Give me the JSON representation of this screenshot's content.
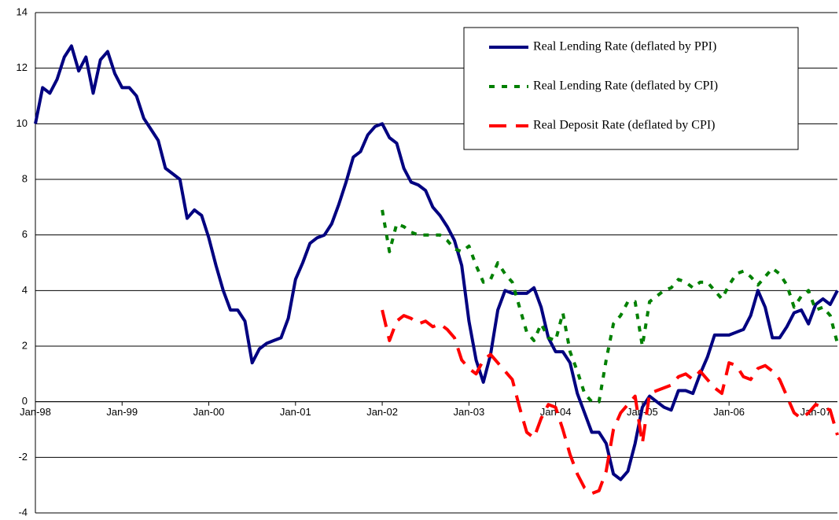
{
  "chart_data": {
    "type": "line",
    "categories": [
      "Jan-98",
      null,
      null,
      null,
      null,
      null,
      null,
      null,
      null,
      null,
      null,
      null,
      "Jan-99",
      null,
      null,
      null,
      null,
      null,
      null,
      null,
      null,
      null,
      null,
      null,
      "Jan-00",
      null,
      null,
      null,
      null,
      null,
      null,
      null,
      null,
      null,
      null,
      null,
      "Jan-01",
      null,
      null,
      null,
      null,
      null,
      null,
      null,
      null,
      null,
      null,
      null,
      "Jan-02",
      null,
      null,
      null,
      null,
      null,
      null,
      null,
      null,
      null,
      null,
      null,
      "Jan-03",
      null,
      null,
      null,
      null,
      null,
      null,
      null,
      null,
      null,
      null,
      null,
      "Jan-04",
      null,
      null,
      null,
      null,
      null,
      null,
      null,
      null,
      null,
      null,
      null,
      "Jan-05",
      null,
      null,
      null,
      null,
      null,
      null,
      null,
      null,
      null,
      null,
      null,
      "Jan-06",
      null,
      null,
      null,
      null,
      null,
      null,
      null,
      null,
      null,
      null,
      null,
      "Jan-07",
      null,
      null,
      null
    ],
    "series": [
      {
        "name": "Real Lending Rate (deflated by PPI)",
        "color": "#000080",
        "dash": "solid",
        "values": [
          10.0,
          11.3,
          11.1,
          11.6,
          12.4,
          12.8,
          11.9,
          12.4,
          11.1,
          12.3,
          12.6,
          11.8,
          11.3,
          11.3,
          11.0,
          10.2,
          9.8,
          9.4,
          8.4,
          8.2,
          8.0,
          6.6,
          6.9,
          6.7,
          5.9,
          4.9,
          4.0,
          3.3,
          3.3,
          2.9,
          1.4,
          1.9,
          2.1,
          2.2,
          2.3,
          3.0,
          4.4,
          5.0,
          5.7,
          5.9,
          6.0,
          6.4,
          7.1,
          7.9,
          8.8,
          9.0,
          9.6,
          9.9,
          10.0,
          9.5,
          9.3,
          8.4,
          7.9,
          7.8,
          7.6,
          7.0,
          6.7,
          6.3,
          5.8,
          4.9,
          2.9,
          1.5,
          0.7,
          1.7,
          3.3,
          4.0,
          3.9,
          3.9,
          3.9,
          4.1,
          3.4,
          2.3,
          1.8,
          1.8,
          1.4,
          0.3,
          -0.4,
          -1.1,
          -1.1,
          -1.5,
          -2.6,
          -2.8,
          -2.5,
          -1.5,
          -0.2,
          0.2,
          0.0,
          -0.2,
          -0.3,
          0.4,
          0.4,
          0.3,
          1.0,
          1.6,
          2.4,
          2.4,
          2.4,
          2.5,
          2.6,
          3.1,
          4.0,
          3.4,
          2.3,
          2.3,
          2.7,
          3.2,
          3.3,
          2.8,
          3.5,
          3.7,
          3.5,
          4.0
        ]
      },
      {
        "name": "Real Lending Rate (deflated by CPI)",
        "color": "#008000",
        "dash": "dot",
        "values": [
          null,
          null,
          null,
          null,
          null,
          null,
          null,
          null,
          null,
          null,
          null,
          null,
          null,
          null,
          null,
          null,
          null,
          null,
          null,
          null,
          null,
          null,
          null,
          null,
          null,
          null,
          null,
          null,
          null,
          null,
          null,
          null,
          null,
          null,
          null,
          null,
          null,
          null,
          null,
          null,
          null,
          null,
          null,
          null,
          null,
          null,
          null,
          null,
          6.9,
          5.4,
          6.4,
          6.3,
          6.1,
          6.0,
          6.0,
          6.0,
          6.0,
          5.8,
          5.5,
          5.4,
          5.6,
          4.9,
          4.3,
          4.4,
          5.0,
          4.6,
          4.3,
          3.4,
          2.5,
          2.2,
          2.8,
          2.3,
          2.2,
          3.2,
          1.8,
          1.1,
          0.3,
          0.0,
          0.0,
          1.5,
          2.8,
          3.1,
          3.6,
          3.6,
          2.0,
          3.6,
          3.8,
          4.0,
          4.1,
          4.4,
          4.3,
          4.1,
          4.3,
          4.3,
          4.0,
          3.7,
          4.2,
          4.6,
          4.7,
          4.5,
          4.2,
          4.5,
          4.8,
          4.6,
          4.2,
          3.4,
          3.8,
          4.0,
          3.3,
          3.4,
          3.1,
          2.1
        ]
      },
      {
        "name": "Real Deposit Rate (deflated by  CPI)",
        "color": "#ff0000",
        "dash": "dash",
        "values": [
          null,
          null,
          null,
          null,
          null,
          null,
          null,
          null,
          null,
          null,
          null,
          null,
          null,
          null,
          null,
          null,
          null,
          null,
          null,
          null,
          null,
          null,
          null,
          null,
          null,
          null,
          null,
          null,
          null,
          null,
          null,
          null,
          null,
          null,
          null,
          null,
          null,
          null,
          null,
          null,
          null,
          null,
          null,
          null,
          null,
          null,
          null,
          null,
          3.3,
          2.2,
          2.9,
          3.1,
          3.0,
          2.8,
          2.9,
          2.7,
          2.8,
          2.6,
          2.3,
          1.5,
          1.2,
          1.0,
          1.5,
          1.7,
          1.4,
          1.1,
          0.8,
          -0.2,
          -1.1,
          -1.3,
          -0.6,
          -0.1,
          -0.2,
          -1.0,
          -1.9,
          -2.6,
          -3.1,
          -3.3,
          -3.2,
          -2.5,
          -1.0,
          -0.4,
          -0.1,
          0.2,
          -1.5,
          0.3,
          0.4,
          0.5,
          0.6,
          0.9,
          1.0,
          0.8,
          1.1,
          0.8,
          0.5,
          0.3,
          1.4,
          1.3,
          0.9,
          0.8,
          1.2,
          1.3,
          1.1,
          0.8,
          0.2,
          -0.4,
          -0.6,
          -0.4,
          -0.1,
          -0.2,
          -0.3,
          -1.2
        ]
      }
    ],
    "ylim": [
      -4,
      14
    ],
    "yticks": [
      -4,
      -2,
      0,
      2,
      4,
      6,
      8,
      10,
      12,
      14
    ],
    "grid": true,
    "legend": "top-right"
  }
}
